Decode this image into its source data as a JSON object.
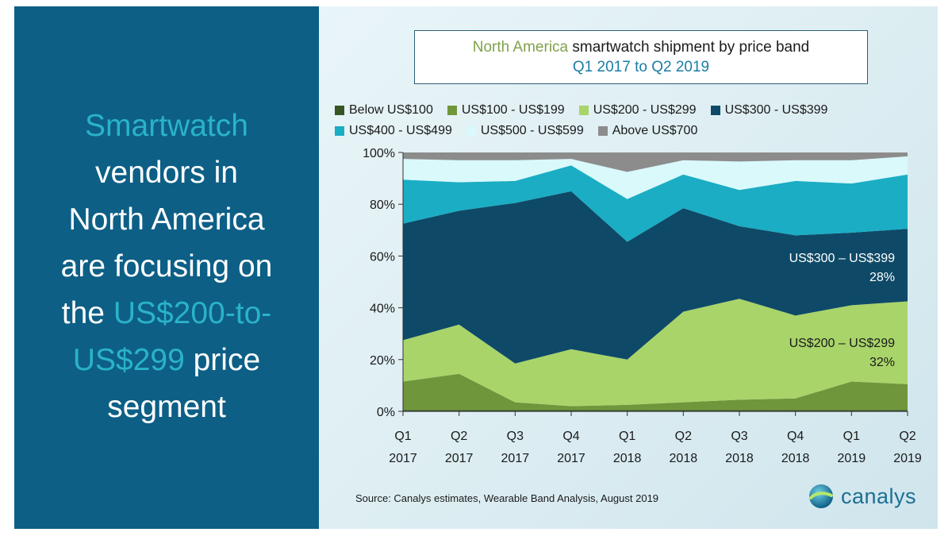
{
  "headline": {
    "line1": "Smartwatch",
    "line2": "vendors in",
    "line3": "North America",
    "line4": "are focusing on",
    "line5a": "the ",
    "line5b": "US$200-to-",
    "line6a": "US$299",
    "line6b": " price",
    "line7": "segment"
  },
  "colors": {
    "left_panel": "#0d5f86",
    "highlight": "#2ab3c8"
  },
  "chart_data": {
    "type": "area",
    "title_accent": "North America",
    "title_rest": " smartwatch shipment by price band",
    "subtitle": "Q1 2017 to Q2 2019",
    "x": [
      {
        "q": "Q1",
        "y": "2017"
      },
      {
        "q": "Q2",
        "y": "2017"
      },
      {
        "q": "Q3",
        "y": "2017"
      },
      {
        "q": "Q4",
        "y": "2017"
      },
      {
        "q": "Q1",
        "y": "2018"
      },
      {
        "q": "Q2",
        "y": "2018"
      },
      {
        "q": "Q3",
        "y": "2018"
      },
      {
        "q": "Q4",
        "y": "2018"
      },
      {
        "q": "Q1",
        "y": "2019"
      },
      {
        "q": "Q2",
        "y": "2019"
      }
    ],
    "ylim": [
      0,
      100
    ],
    "yticks": [
      "0%",
      "20%",
      "40%",
      "60%",
      "80%",
      "100%"
    ],
    "stacked": true,
    "series": [
      {
        "name": "Below US$100",
        "color": "#375623",
        "values": [
          0.5,
          0.5,
          0.5,
          0.5,
          0.5,
          0.5,
          0.5,
          0.5,
          0.5,
          0.5
        ]
      },
      {
        "name": "US$100 - US$199",
        "color": "#70963b",
        "values": [
          11,
          14,
          3,
          1.5,
          2,
          3,
          4,
          4.5,
          11,
          10
        ]
      },
      {
        "name": "US$200 - US$299",
        "color": "#a9d46a",
        "values": [
          16,
          19,
          15,
          22,
          17.5,
          35,
          39,
          32,
          29.5,
          32
        ]
      },
      {
        "name": "US$300 - US$399",
        "color": "#0e4a67",
        "values": [
          45,
          44,
          62,
          61,
          45.5,
          40,
          28,
          31,
          28,
          28
        ]
      },
      {
        "name": "US$400 - US$499",
        "color": "#1badc4",
        "values": [
          17,
          11,
          8.5,
          10,
          16.5,
          13,
          14,
          21,
          19,
          21
        ]
      },
      {
        "name": "US$500 - US$599",
        "color": "#d9f9fb",
        "values": [
          8,
          8.5,
          8,
          2.5,
          10.5,
          5.5,
          11,
          8,
          9,
          7
        ]
      },
      {
        "name": "Above US$700",
        "color": "#8c8c8c",
        "values": [
          2.5,
          3,
          3,
          2.5,
          7.5,
          3,
          3.5,
          3,
          3,
          1.5
        ]
      }
    ],
    "annotations": [
      {
        "line1": "US$300 – US$399",
        "line2": "28%"
      },
      {
        "line1": "US$200 – US$299",
        "line2": "32%"
      }
    ],
    "source": "Source: Canalys estimates, Wearable Band Analysis, August 2019",
    "logo_text": "canalys"
  }
}
